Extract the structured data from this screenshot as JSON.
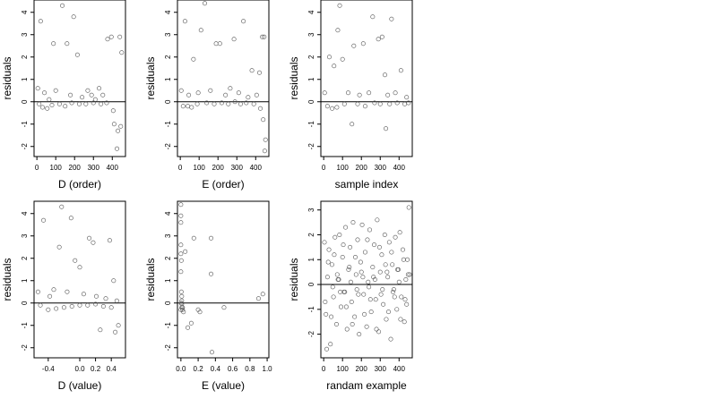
{
  "chart_data": [
    {
      "type": "scatter",
      "xlabel": "D (order)",
      "ylabel": "residuals",
      "xlim": [
        -15,
        470
      ],
      "ylim": [
        -2.45,
        4.55
      ],
      "xticks": [
        0,
        100,
        200,
        300,
        400
      ],
      "xtick_labels": [
        "0",
        "100",
        "200",
        "300",
        "400"
      ],
      "yticks": [
        -2,
        -1,
        0,
        1,
        2,
        3,
        4
      ],
      "ytick_labels": [
        "-2",
        "-1",
        "0",
        "1",
        "2",
        "3",
        "4"
      ],
      "reference_line_y": 0,
      "x": [
        5,
        20,
        40,
        65,
        88,
        100,
        135,
        160,
        178,
        195,
        215,
        240,
        270,
        290,
        310,
        330,
        350,
        375,
        395,
        410,
        425,
        440,
        450,
        12,
        30,
        55,
        80,
        120,
        150,
        185,
        225,
        260,
        300,
        340,
        370,
        405,
        430,
        445
      ],
      "y": [
        0.6,
        3.6,
        0.4,
        0.1,
        2.6,
        0.5,
        4.3,
        2.6,
        0.3,
        3.8,
        2.1,
        0.2,
        0.5,
        0.3,
        0.1,
        0.6,
        0.3,
        2.8,
        2.9,
        -1.0,
        -2.1,
        2.9,
        2.2,
        -0.1,
        -0.25,
        -0.3,
        -0.15,
        -0.1,
        -0.2,
        -0.05,
        -0.1,
        -0.1,
        -0.05,
        -0.1,
        -0.05,
        -0.4,
        -1.3,
        -1.1
      ]
    },
    {
      "type": "scatter",
      "xlabel": "E (order)",
      "ylabel": "residuals",
      "xlim": [
        -15,
        470
      ],
      "ylim": [
        -2.45,
        4.55
      ],
      "xticks": [
        0,
        100,
        200,
        300,
        400
      ],
      "xtick_labels": [
        "0",
        "100",
        "200",
        "300",
        "400"
      ],
      "yticks": [
        -2,
        -1,
        0,
        1,
        2,
        3,
        4
      ],
      "ytick_labels": [
        "-2",
        "-1",
        "0",
        "1",
        "2",
        "3",
        "4"
      ],
      "reference_line_y": 0,
      "x": [
        5,
        25,
        45,
        70,
        95,
        110,
        130,
        160,
        190,
        210,
        240,
        265,
        285,
        310,
        335,
        360,
        380,
        405,
        420,
        435,
        445,
        452,
        15,
        40,
        60,
        90,
        140,
        180,
        220,
        255,
        290,
        320,
        350,
        390,
        425,
        440,
        448
      ],
      "y": [
        0.5,
        3.6,
        0.3,
        1.9,
        0.4,
        3.2,
        4.4,
        0.5,
        2.6,
        2.6,
        0.3,
        0.6,
        2.8,
        0.4,
        3.6,
        0.2,
        1.4,
        0.3,
        1.3,
        2.9,
        2.9,
        -1.7,
        -0.2,
        -0.2,
        -0.25,
        -0.1,
        -0.05,
        -0.1,
        -0.05,
        -0.1,
        0.0,
        -0.1,
        -0.05,
        -0.1,
        -0.3,
        -0.8,
        -2.2
      ]
    },
    {
      "type": "scatter",
      "xlabel": "sample index",
      "ylabel": "residuals",
      "xlim": [
        -15,
        470
      ],
      "ylim": [
        -2.45,
        4.55
      ],
      "xticks": [
        0,
        100,
        200,
        300,
        400
      ],
      "xtick_labels": [
        "0",
        "100",
        "200",
        "300",
        "400"
      ],
      "yticks": [
        -2,
        -1,
        0,
        1,
        2,
        3,
        4
      ],
      "ytick_labels": [
        "-2",
        "-1",
        "0",
        "1",
        "2",
        "3",
        "4"
      ],
      "reference_line_y": 0,
      "x": [
        5,
        30,
        55,
        75,
        85,
        100,
        130,
        160,
        190,
        210,
        240,
        260,
        290,
        310,
        325,
        340,
        360,
        380,
        410,
        440,
        20,
        45,
        70,
        110,
        150,
        180,
        220,
        270,
        300,
        330,
        350,
        390,
        430,
        450
      ],
      "y": [
        0.4,
        2.0,
        1.6,
        3.2,
        4.3,
        1.9,
        0.4,
        2.5,
        0.3,
        2.6,
        0.4,
        3.8,
        2.8,
        2.9,
        1.2,
        0.3,
        3.7,
        0.4,
        1.4,
        0.2,
        -0.2,
        -0.3,
        -0.25,
        -0.1,
        -1.0,
        -0.1,
        -0.2,
        -0.05,
        -0.1,
        -1.2,
        -0.1,
        -0.05,
        -0.1,
        -0.05
      ]
    },
    {
      "type": "scatter",
      "xlabel": "D (value)",
      "ylabel": "residuals",
      "xlim": [
        -0.58,
        0.58
      ],
      "ylim": [
        -2.45,
        4.55
      ],
      "xticks": [
        -0.4,
        0.0,
        0.2,
        0.4
      ],
      "xtick_labels": [
        "-0.4",
        "0.0",
        "0.2",
        "0.4"
      ],
      "yticks": [
        -2,
        -1,
        0,
        1,
        2,
        3,
        4
      ],
      "ytick_labels": [
        "-2",
        "-1",
        "0",
        "1",
        "2",
        "3",
        "4"
      ],
      "reference_line_y": 0,
      "x": [
        -0.53,
        -0.46,
        -0.38,
        -0.33,
        -0.26,
        -0.23,
        -0.16,
        -0.11,
        -0.06,
        0.0,
        0.05,
        0.12,
        0.17,
        0.21,
        0.26,
        0.33,
        0.38,
        0.43,
        0.47,
        -0.5,
        -0.4,
        -0.3,
        -0.2,
        -0.1,
        0.0,
        0.1,
        0.2,
        0.3,
        0.4,
        0.45,
        0.49
      ],
      "y": [
        0.5,
        3.7,
        0.3,
        0.6,
        2.5,
        4.3,
        0.5,
        3.8,
        1.9,
        1.6,
        0.4,
        2.9,
        2.7,
        0.3,
        -1.2,
        0.2,
        2.8,
        1.0,
        0.1,
        -0.1,
        -0.3,
        -0.25,
        -0.2,
        -0.15,
        -0.1,
        -0.1,
        -0.05,
        -0.15,
        -0.2,
        -1.3,
        -1.0
      ]
    },
    {
      "type": "scatter",
      "xlabel": "E (value)",
      "ylabel": "residuals",
      "xlim": [
        -0.04,
        1.02
      ],
      "ylim": [
        -2.45,
        4.55
      ],
      "xticks": [
        0.0,
        0.2,
        0.4,
        0.6,
        0.8,
        1.0
      ],
      "xtick_labels": [
        "0.0",
        "0.2",
        "0.4",
        "0.6",
        "0.8",
        "1.0"
      ],
      "yticks": [
        -2,
        -1,
        0,
        1,
        2,
        3,
        4
      ],
      "ytick_labels": [
        "-2",
        "-1",
        "0",
        "1",
        "2",
        "3",
        "4"
      ],
      "reference_line_y": 0,
      "x": [
        0.0,
        0.0,
        0.0,
        0.0,
        0.0,
        0.0,
        0.005,
        0.005,
        0.01,
        0.01,
        0.01,
        0.02,
        0.02,
        0.03,
        0.05,
        0.08,
        0.12,
        0.15,
        0.2,
        0.22,
        0.35,
        0.35,
        0.36,
        0.5,
        0.9,
        0.95,
        0.005,
        0.0,
        0.01
      ],
      "y": [
        4.4,
        3.9,
        3.6,
        2.6,
        2.2,
        1.4,
        1.9,
        0.5,
        0.3,
        0.1,
        -0.05,
        -0.2,
        -0.3,
        -0.4,
        2.3,
        -1.1,
        -0.9,
        2.9,
        -0.3,
        -0.4,
        2.9,
        1.3,
        -2.2,
        -0.2,
        0.2,
        0.4,
        0.0,
        -0.3,
        -0.2
      ]
    },
    {
      "type": "scatter",
      "xlabel": "randam example",
      "ylabel": "residuals",
      "xlim": [
        -15,
        470
      ],
      "ylim": [
        -2.95,
        3.35
      ],
      "xticks": [
        0,
        100,
        200,
        300,
        400
      ],
      "xtick_labels": [
        "0",
        "100",
        "200",
        "300",
        "400"
      ],
      "yticks": [
        -2,
        -1,
        0,
        1,
        2,
        3
      ],
      "ytick_labels": [
        "-2",
        "-1",
        "0",
        "1",
        "2",
        "3"
      ],
      "reference_line_y": 0,
      "x": [
        4,
        12,
        20,
        28,
        36,
        44,
        52,
        60,
        68,
        76,
        84,
        92,
        100,
        108,
        116,
        124,
        132,
        140,
        148,
        156,
        164,
        172,
        180,
        188,
        196,
        204,
        212,
        220,
        228,
        236,
        244,
        252,
        260,
        268,
        276,
        284,
        292,
        300,
        308,
        316,
        324,
        332,
        340,
        348,
        356,
        364,
        372,
        380,
        388,
        396,
        404,
        412,
        420,
        428,
        436,
        444,
        452,
        8,
        24,
        40,
        56,
        72,
        88,
        104,
        120,
        136,
        152,
        168,
        184,
        200,
        216,
        232,
        248,
        264,
        280,
        296,
        312,
        328,
        344,
        360,
        376,
        392,
        408,
        424,
        440,
        456,
        16,
        48,
        80,
        112,
        144,
        176,
        208,
        240,
        272,
        304,
        336,
        368,
        400,
        432,
        448
      ],
      "y": [
        1.7,
        -1.2,
        0.3,
        1.4,
        -2.4,
        0.8,
        -0.5,
        1.9,
        -1.6,
        0.2,
        2.0,
        -0.9,
        1.1,
        -0.3,
        2.3,
        -1.8,
        0.6,
        1.5,
        -0.7,
        2.5,
        -1.3,
        0.4,
        1.8,
        -2.0,
        0.9,
        2.4,
        -0.4,
        1.3,
        -1.7,
        0.1,
        2.2,
        -1.1,
        0.7,
        1.6,
        -0.6,
        2.6,
        -1.9,
        0.5,
        1.2,
        -0.8,
        2.0,
        -1.4,
        0.3,
        1.7,
        -2.2,
        0.8,
        -0.2,
        1.9,
        -1.0,
        0.6,
        2.1,
        -0.5,
        1.4,
        -1.5,
        0.2,
        1.0,
        3.1,
        -0.7,
        0.9,
        -1.3,
        1.2,
        0.4,
        -0.3,
        1.6,
        -0.9,
        0.7,
        -1.6,
        1.1,
        -0.4,
        0.5,
        -1.2,
        1.8,
        -0.6,
        0.3,
        -1.8,
        1.5,
        -0.2,
        0.8,
        -1.1,
        1.3,
        -0.5,
        0.6,
        -1.4,
        1.0,
        -0.8,
        0.4,
        -2.6,
        -0.1,
        0.2,
        -0.3,
        0.1,
        -0.2,
        0.3,
        -0.1,
        0.2,
        -0.4,
        0.5,
        -0.3,
        0.1,
        -0.6,
        0.4
      ]
    }
  ]
}
